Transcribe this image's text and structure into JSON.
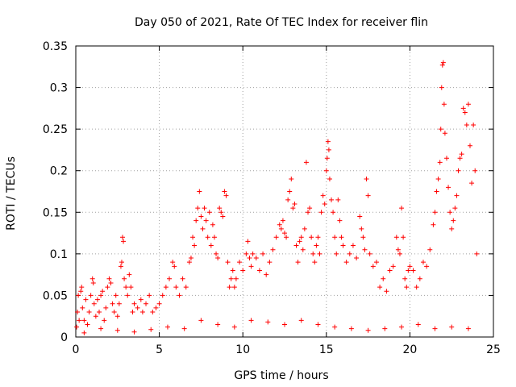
{
  "chart_data": {
    "type": "scatter",
    "title": "Day 050 of 2021, Rate Of TEC Index for receiver flin",
    "xlabel": "GPS time / hours",
    "ylabel": "ROTI / TECUs",
    "xlim": [
      0,
      25
    ],
    "ylim": [
      0,
      0.35
    ],
    "x_ticks": [
      0,
      5,
      10,
      15,
      20,
      25
    ],
    "x_tick_labels": [
      "0",
      "5",
      "10",
      "15",
      "20",
      "25"
    ],
    "y_ticks": [
      0,
      0.05,
      0.1,
      0.15,
      0.2,
      0.25,
      0.3,
      0.35
    ],
    "y_tick_labels": [
      "0",
      "0.05",
      "0.1",
      "0.15",
      "0.2",
      "0.25",
      "0.3",
      "0.35"
    ],
    "grid": true,
    "marker": "+",
    "color": "#ff0000",
    "series": [
      {
        "name": "ROTI",
        "points": [
          [
            0.05,
            0.012
          ],
          [
            0.1,
            0.03
          ],
          [
            0.15,
            0.05
          ],
          [
            0.2,
            0.02
          ],
          [
            0.3,
            0.055
          ],
          [
            0.35,
            0.06
          ],
          [
            0.4,
            0.035
          ],
          [
            0.5,
            0.02
          ],
          [
            0.6,
            0.045
          ],
          [
            0.7,
            0.015
          ],
          [
            0.8,
            0.03
          ],
          [
            0.9,
            0.05
          ],
          [
            1.0,
            0.07
          ],
          [
            1.05,
            0.065
          ],
          [
            1.1,
            0.04
          ],
          [
            1.2,
            0.025
          ],
          [
            1.3,
            0.045
          ],
          [
            1.4,
            0.03
          ],
          [
            1.5,
            0.05
          ],
          [
            1.6,
            0.055
          ],
          [
            1.7,
            0.02
          ],
          [
            1.8,
            0.035
          ],
          [
            1.9,
            0.06
          ],
          [
            2.0,
            0.07
          ],
          [
            2.1,
            0.065
          ],
          [
            2.2,
            0.04
          ],
          [
            2.3,
            0.03
          ],
          [
            2.4,
            0.05
          ],
          [
            2.5,
            0.025
          ],
          [
            2.6,
            0.04
          ],
          [
            2.7,
            0.085
          ],
          [
            2.75,
            0.09
          ],
          [
            2.8,
            0.12
          ],
          [
            2.85,
            0.115
          ],
          [
            2.9,
            0.07
          ],
          [
            3.0,
            0.06
          ],
          [
            3.1,
            0.05
          ],
          [
            3.2,
            0.075
          ],
          [
            3.3,
            0.06
          ],
          [
            3.4,
            0.03
          ],
          [
            3.5,
            0.04
          ],
          [
            3.7,
            0.035
          ],
          [
            3.9,
            0.045
          ],
          [
            4.0,
            0.03
          ],
          [
            4.2,
            0.04
          ],
          [
            4.4,
            0.05
          ],
          [
            4.6,
            0.03
          ],
          [
            4.8,
            0.035
          ],
          [
            5.0,
            0.04
          ],
          [
            5.2,
            0.05
          ],
          [
            5.4,
            0.06
          ],
          [
            5.6,
            0.07
          ],
          [
            5.8,
            0.09
          ],
          [
            5.9,
            0.085
          ],
          [
            6.0,
            0.06
          ],
          [
            6.2,
            0.05
          ],
          [
            6.4,
            0.07
          ],
          [
            6.6,
            0.06
          ],
          [
            6.8,
            0.09
          ],
          [
            6.9,
            0.095
          ],
          [
            7.0,
            0.12
          ],
          [
            7.1,
            0.11
          ],
          [
            7.2,
            0.14
          ],
          [
            7.3,
            0.155
          ],
          [
            7.4,
            0.175
          ],
          [
            7.5,
            0.145
          ],
          [
            7.6,
            0.13
          ],
          [
            7.7,
            0.155
          ],
          [
            7.8,
            0.14
          ],
          [
            7.9,
            0.12
          ],
          [
            8.0,
            0.15
          ],
          [
            8.1,
            0.11
          ],
          [
            8.2,
            0.135
          ],
          [
            8.3,
            0.12
          ],
          [
            8.4,
            0.1
          ],
          [
            8.5,
            0.095
          ],
          [
            8.6,
            0.155
          ],
          [
            8.7,
            0.15
          ],
          [
            8.8,
            0.145
          ],
          [
            8.9,
            0.175
          ],
          [
            9.0,
            0.17
          ],
          [
            9.1,
            0.09
          ],
          [
            9.2,
            0.06
          ],
          [
            9.3,
            0.07
          ],
          [
            9.4,
            0.08
          ],
          [
            9.5,
            0.06
          ],
          [
            9.6,
            0.07
          ],
          [
            9.8,
            0.09
          ],
          [
            10.0,
            0.08
          ],
          [
            10.2,
            0.1
          ],
          [
            10.3,
            0.115
          ],
          [
            10.4,
            0.095
          ],
          [
            10.5,
            0.085
          ],
          [
            10.6,
            0.1
          ],
          [
            10.8,
            0.095
          ],
          [
            11.0,
            0.08
          ],
          [
            11.2,
            0.1
          ],
          [
            11.4,
            0.075
          ],
          [
            11.6,
            0.09
          ],
          [
            11.8,
            0.105
          ],
          [
            12.0,
            0.12
          ],
          [
            12.2,
            0.135
          ],
          [
            12.3,
            0.13
          ],
          [
            12.4,
            0.14
          ],
          [
            12.5,
            0.125
          ],
          [
            12.6,
            0.12
          ],
          [
            12.7,
            0.165
          ],
          [
            12.8,
            0.175
          ],
          [
            12.9,
            0.19
          ],
          [
            13.0,
            0.155
          ],
          [
            13.1,
            0.16
          ],
          [
            13.2,
            0.11
          ],
          [
            13.3,
            0.09
          ],
          [
            13.4,
            0.115
          ],
          [
            13.5,
            0.12
          ],
          [
            13.6,
            0.105
          ],
          [
            13.7,
            0.13
          ],
          [
            13.8,
            0.21
          ],
          [
            13.9,
            0.15
          ],
          [
            14.0,
            0.155
          ],
          [
            14.1,
            0.12
          ],
          [
            14.2,
            0.1
          ],
          [
            14.3,
            0.09
          ],
          [
            14.4,
            0.11
          ],
          [
            14.5,
            0.12
          ],
          [
            14.6,
            0.1
          ],
          [
            14.7,
            0.15
          ],
          [
            14.8,
            0.17
          ],
          [
            14.9,
            0.16
          ],
          [
            15.0,
            0.2
          ],
          [
            15.05,
            0.215
          ],
          [
            15.1,
            0.235
          ],
          [
            15.15,
            0.225
          ],
          [
            15.2,
            0.19
          ],
          [
            15.3,
            0.165
          ],
          [
            15.4,
            0.15
          ],
          [
            15.5,
            0.12
          ],
          [
            15.6,
            0.1
          ],
          [
            15.7,
            0.165
          ],
          [
            15.8,
            0.14
          ],
          [
            15.9,
            0.12
          ],
          [
            16.0,
            0.11
          ],
          [
            16.2,
            0.09
          ],
          [
            16.4,
            0.1
          ],
          [
            16.6,
            0.11
          ],
          [
            16.8,
            0.095
          ],
          [
            17.0,
            0.145
          ],
          [
            17.1,
            0.13
          ],
          [
            17.2,
            0.12
          ],
          [
            17.3,
            0.105
          ],
          [
            17.4,
            0.19
          ],
          [
            17.5,
            0.17
          ],
          [
            17.6,
            0.1
          ],
          [
            17.8,
            0.085
          ],
          [
            18.0,
            0.09
          ],
          [
            18.2,
            0.06
          ],
          [
            18.4,
            0.07
          ],
          [
            18.6,
            0.055
          ],
          [
            18.8,
            0.08
          ],
          [
            19.0,
            0.085
          ],
          [
            19.2,
            0.12
          ],
          [
            19.3,
            0.105
          ],
          [
            19.4,
            0.1
          ],
          [
            19.5,
            0.155
          ],
          [
            19.6,
            0.12
          ],
          [
            19.7,
            0.07
          ],
          [
            19.8,
            0.06
          ],
          [
            19.9,
            0.08
          ],
          [
            20.0,
            0.085
          ],
          [
            20.2,
            0.08
          ],
          [
            20.4,
            0.06
          ],
          [
            20.6,
            0.07
          ],
          [
            20.8,
            0.09
          ],
          [
            21.0,
            0.085
          ],
          [
            21.2,
            0.105
          ],
          [
            21.4,
            0.135
          ],
          [
            21.5,
            0.15
          ],
          [
            21.6,
            0.175
          ],
          [
            21.7,
            0.19
          ],
          [
            21.8,
            0.21
          ],
          [
            21.85,
            0.25
          ],
          [
            21.9,
            0.3
          ],
          [
            21.95,
            0.327
          ],
          [
            22.0,
            0.33
          ],
          [
            22.05,
            0.28
          ],
          [
            22.1,
            0.245
          ],
          [
            22.2,
            0.215
          ],
          [
            22.3,
            0.18
          ],
          [
            22.4,
            0.15
          ],
          [
            22.5,
            0.13
          ],
          [
            22.6,
            0.14
          ],
          [
            22.7,
            0.155
          ],
          [
            22.8,
            0.17
          ],
          [
            22.9,
            0.2
          ],
          [
            23.0,
            0.215
          ],
          [
            23.1,
            0.22
          ],
          [
            23.2,
            0.275
          ],
          [
            23.3,
            0.27
          ],
          [
            23.4,
            0.255
          ],
          [
            23.5,
            0.28
          ],
          [
            23.6,
            0.23
          ],
          [
            23.7,
            0.185
          ],
          [
            23.8,
            0.255
          ],
          [
            23.9,
            0.2
          ],
          [
            24.0,
            0.1
          ],
          [
            0.5,
            0.005
          ],
          [
            1.5,
            0.01
          ],
          [
            2.5,
            0.008
          ],
          [
            3.5,
            0.006
          ],
          [
            4.5,
            0.009
          ],
          [
            5.5,
            0.012
          ],
          [
            6.5,
            0.01
          ],
          [
            7.5,
            0.02
          ],
          [
            8.5,
            0.015
          ],
          [
            9.5,
            0.012
          ],
          [
            10.5,
            0.02
          ],
          [
            11.5,
            0.018
          ],
          [
            12.5,
            0.015
          ],
          [
            13.5,
            0.02
          ],
          [
            14.5,
            0.015
          ],
          [
            15.5,
            0.012
          ],
          [
            16.5,
            0.01
          ],
          [
            17.5,
            0.008
          ],
          [
            18.5,
            0.01
          ],
          [
            19.5,
            0.012
          ],
          [
            20.5,
            0.015
          ],
          [
            21.5,
            0.01
          ],
          [
            22.5,
            0.012
          ],
          [
            23.5,
            0.01
          ]
        ]
      }
    ]
  }
}
